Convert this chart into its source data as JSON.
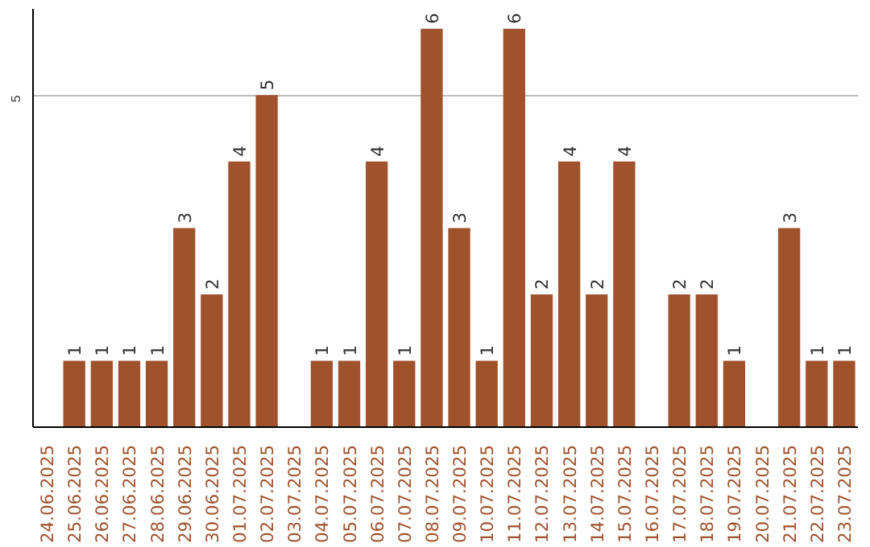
{
  "chart_data": {
    "type": "bar",
    "categories": [
      "24.06.2025",
      "25.06.2025",
      "26.06.2025",
      "27.06.2025",
      "28.06.2025",
      "29.06.2025",
      "30.06.2025",
      "01.07.2025",
      "02.07.2025",
      "03.07.2025",
      "04.07.2025",
      "05.07.2025",
      "06.07.2025",
      "07.07.2025",
      "08.07.2025",
      "09.07.2025",
      "10.07.2025",
      "11.07.2025",
      "12.07.2025",
      "13.07.2025",
      "14.07.2025",
      "15.07.2025",
      "16.07.2025",
      "17.07.2025",
      "18.07.2025",
      "19.07.2025",
      "20.07.2025",
      "21.07.2025",
      "22.07.2025",
      "23.07.2025"
    ],
    "values": [
      0,
      1,
      1,
      1,
      1,
      3,
      2,
      4,
      5,
      0,
      1,
      1,
      4,
      1,
      6,
      3,
      1,
      6,
      2,
      4,
      2,
      4,
      0,
      2,
      2,
      1,
      0,
      3,
      1,
      1
    ],
    "value_labels": [
      null,
      "1",
      "1",
      "1",
      "1",
      "3",
      "2",
      "4",
      "5",
      null,
      "1",
      "1",
      "4",
      "1",
      "6",
      "3",
      "1",
      "6",
      "2",
      "4",
      "2",
      "4",
      null,
      "2",
      "2",
      "1",
      null,
      "3",
      "1",
      "1"
    ],
    "color": "#a0522d",
    "ylim": [
      0,
      6.3
    ],
    "yticks": [
      5
    ],
    "grid": "y"
  }
}
